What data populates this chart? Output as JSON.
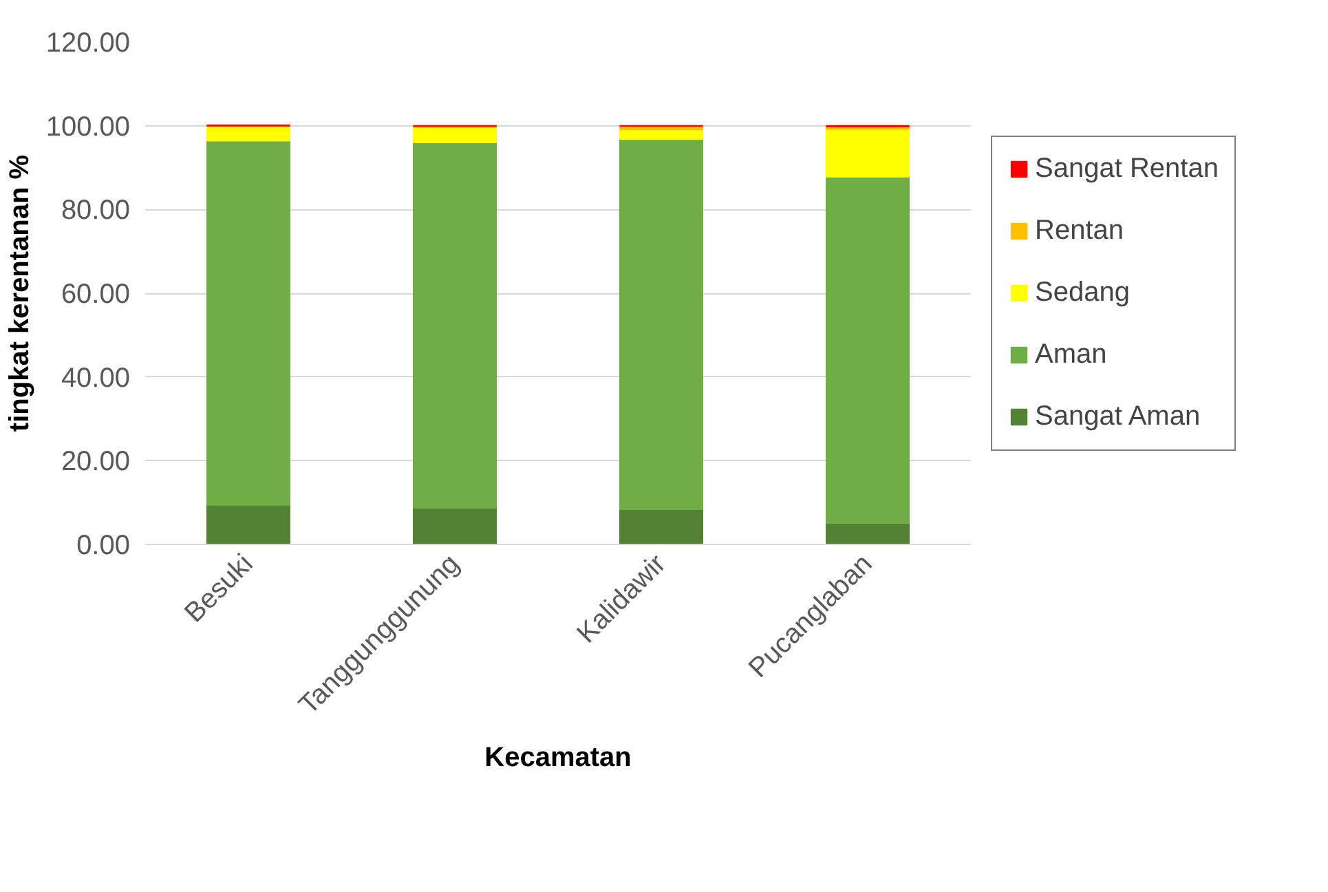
{
  "chart_data": {
    "type": "bar",
    "stacked": true,
    "xlabel": "Kecamatan",
    "ylabel": "tingkat kerentanan %",
    "categories": [
      "Besuki",
      "Tanggunggunung",
      "Kalidawir",
      "Pucanglaban"
    ],
    "series": [
      {
        "name": "Sangat Aman",
        "color": "#548235",
        "values": [
          9.4,
          8.7,
          8.4,
          5.1
        ]
      },
      {
        "name": "Aman",
        "color": "#70ad47",
        "values": [
          87.0,
          87.3,
          88.4,
          82.7
        ]
      },
      {
        "name": "Sedang",
        "color": "#ffff00",
        "values": [
          3.4,
          3.6,
          2.3,
          11.4
        ]
      },
      {
        "name": "Rentan",
        "color": "#ffc000",
        "values": [
          0.2,
          0.3,
          0.8,
          0.6
        ]
      },
      {
        "name": "Sangat Rentan",
        "color": "#ff0000",
        "values": [
          0.1,
          0.1,
          0.1,
          0.2
        ]
      }
    ],
    "ylim": [
      0,
      120
    ],
    "yticks": [
      {
        "value": 0,
        "label": "0.00"
      },
      {
        "value": 20,
        "label": "20.00"
      },
      {
        "value": 40,
        "label": "40.00"
      },
      {
        "value": 60,
        "label": "60.00"
      },
      {
        "value": 80,
        "label": "80.00"
      },
      {
        "value": 100,
        "label": "100.00"
      },
      {
        "value": 120,
        "label": "120.00"
      }
    ],
    "grid": "y",
    "legend": "right"
  }
}
